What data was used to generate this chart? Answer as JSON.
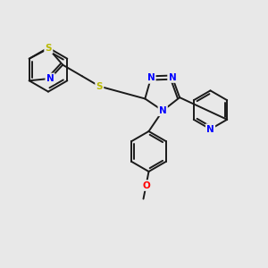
{
  "bg_color": "#e8e8e8",
  "bond_color": "#1a1a1a",
  "S_color": "#b8b800",
  "N_color": "#0000ff",
  "O_color": "#ff0000",
  "bond_width": 1.4,
  "figsize": [
    3.0,
    3.0
  ],
  "dpi": 100,
  "xlim": [
    0,
    10
  ],
  "ylim": [
    0,
    10
  ]
}
